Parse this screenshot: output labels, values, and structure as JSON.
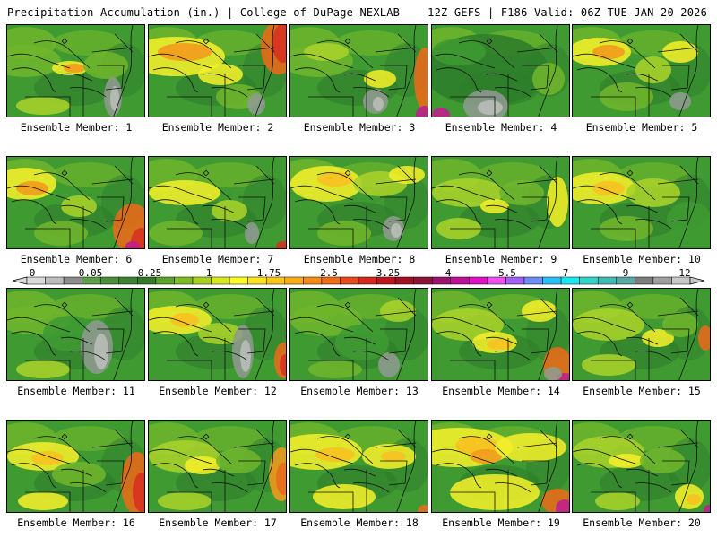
{
  "header": {
    "left": "Precipitation Accumulation (in.) | College of DuPage NEXLAB",
    "right": "12Z GEFS | F186 Valid: 06Z TUE JAN 20 2026"
  },
  "members": [
    {
      "label": "Ensemble Member: 1"
    },
    {
      "label": "Ensemble Member: 2"
    },
    {
      "label": "Ensemble Member: 3"
    },
    {
      "label": "Ensemble Member: 4"
    },
    {
      "label": "Ensemble Member: 5"
    },
    {
      "label": "Ensemble Member: 6"
    },
    {
      "label": "Ensemble Member: 7"
    },
    {
      "label": "Ensemble Member: 8"
    },
    {
      "label": "Ensemble Member: 9"
    },
    {
      "label": "Ensemble Member: 10"
    },
    {
      "label": "Ensemble Member: 11"
    },
    {
      "label": "Ensemble Member: 12"
    },
    {
      "label": "Ensemble Member: 13"
    },
    {
      "label": "Ensemble Member: 14"
    },
    {
      "label": "Ensemble Member: 15"
    },
    {
      "label": "Ensemble Member: 16"
    },
    {
      "label": "Ensemble Member: 17"
    },
    {
      "label": "Ensemble Member: 18"
    },
    {
      "label": "Ensemble Member: 19"
    },
    {
      "label": "Ensemble Member: 20"
    }
  ],
  "colorbar": {
    "labels": [
      "0",
      "0.05",
      "0.25",
      "1",
      "1.75",
      "2.5",
      "3.25",
      "4",
      "5.5",
      "7",
      "9",
      "12"
    ],
    "colors": [
      "#d9d9d9",
      "#bdbdbd",
      "#8c8c8c",
      "#5f9e4c",
      "#4a8e3c",
      "#3c8232",
      "#337a2c",
      "#5aa22a",
      "#7fbc24",
      "#a9d21c",
      "#d8e81a",
      "#fbfb22",
      "#fbe41c",
      "#fbc81a",
      "#fbac16",
      "#f98a14",
      "#f26a12",
      "#e8481a",
      "#d8261e",
      "#c01420",
      "#a40e22",
      "#8c1236",
      "#a01070",
      "#c0109a",
      "#e010c8",
      "#f050f0",
      "#a060f8",
      "#6c8cf8",
      "#28c0f8",
      "#18e8f0",
      "#30d4c8",
      "#40bcb4",
      "#5aa8a4",
      "#7c7c7c",
      "#a0a0a0",
      "#c8c8c8"
    ]
  }
}
